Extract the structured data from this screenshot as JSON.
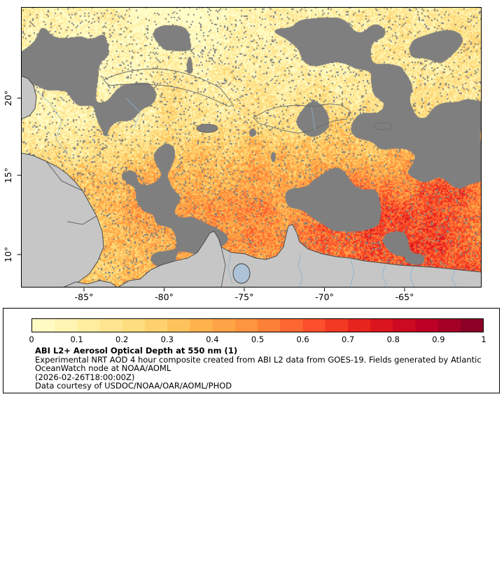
{
  "map": {
    "x_tick_labels": [
      "-85°",
      "-80°",
      "-75°",
      "-70°",
      "-65°"
    ],
    "y_tick_labels": [
      "20°",
      "15°",
      "10°"
    ],
    "land_color": "#c6c6c6",
    "no_data_color": "#7f7f7f",
    "river_color": "#85b3d6",
    "border_color": "#000000"
  },
  "legend": {
    "title": "ABI L2+ Aerosol Optical Depth at 550 nm (1)",
    "lines": [
      "Experimental NRT AOD 4 hour composite created from ABI L2 data from GOES-19. Fields generated by Atlantic",
      "OceanWatch node at NOAA/AOML",
      "(2026-02-26T18:00:00Z)",
      "Data courtesy of USDOC/NOAA/OAR/AOML/PHOD"
    ],
    "colorbar_ticks": [
      "0",
      "0.1",
      "0.2",
      "0.3",
      "0.4",
      "0.5",
      "0.6",
      "0.7",
      "0.8",
      "0.9",
      "1"
    ]
  },
  "chart_data": {
    "type": "heatmap",
    "title": "ABI L2+ Aerosol Optical Depth at 550 nm (1)",
    "xlabel": "",
    "ylabel": "",
    "x_tick_labels": [
      "-85°",
      "-80°",
      "-75°",
      "-70°",
      "-65°"
    ],
    "y_tick_labels": [
      "20°",
      "15°",
      "10°"
    ],
    "x_ticks": [
      -85,
      -80,
      -75,
      -70,
      -65
    ],
    "y_ticks": [
      20,
      15,
      10
    ],
    "xlim": [
      -88.9,
      -60.2
    ],
    "ylim": [
      7.9,
      25.9
    ],
    "colorbar": {
      "min": 0,
      "max": 1,
      "ticks": [
        0,
        0.1,
        0.2,
        0.3,
        0.4,
        0.5,
        0.6,
        0.7,
        0.8,
        0.9,
        1
      ],
      "colormap": [
        "#ffffcc",
        "#ffeda0",
        "#fed976",
        "#feb24c",
        "#fd8d3c",
        "#fc4e2a",
        "#e31a1c",
        "#bd0026",
        "#800026"
      ],
      "no_data_color": "#7f7f7f",
      "land_color": "#c6c6c6"
    },
    "annotations": [
      "Experimental NRT AOD 4 hour composite created from ABI L2 data from GOES-19. Fields generated by Atlantic",
      "OceanWatch node at NOAA/AOML",
      "(2026-02-26T18:00:00Z)",
      "Data courtesy of USDOC/NOAA/OAR/AOML/PHOD"
    ]
  }
}
